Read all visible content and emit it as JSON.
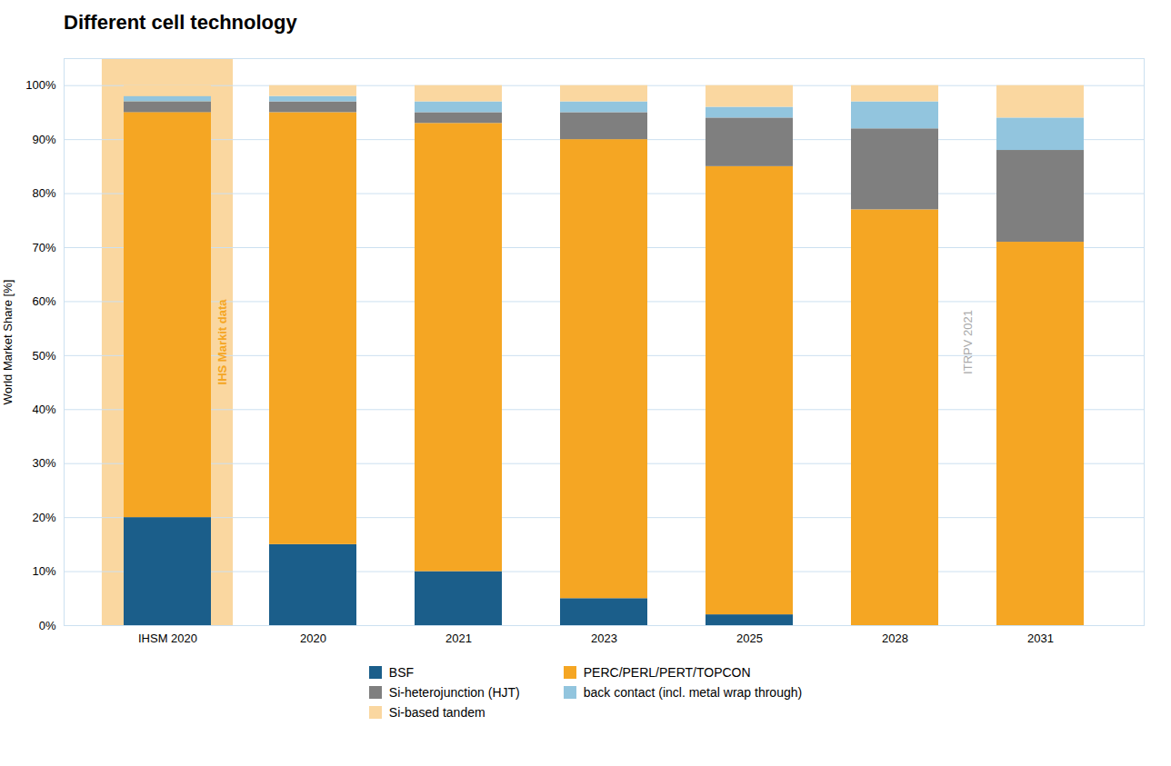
{
  "chart_data": {
    "type": "bar",
    "stacked": true,
    "title": "Different cell technology",
    "ylabel": "World Market Share [%]",
    "categories": [
      "IHSM 2020",
      "2020",
      "2021",
      "2023",
      "2025",
      "2028",
      "2031"
    ],
    "series": [
      {
        "name": "BSF",
        "color": "#1b5e8a",
        "values": [
          20,
          15,
          10,
          5,
          2,
          0,
          0
        ]
      },
      {
        "name": "PERC/PERL/PERT/TOPCON",
        "color": "#f5a623",
        "values": [
          75,
          80,
          83,
          85,
          83,
          77,
          71
        ]
      },
      {
        "name": "Si-heterojunction (HJT)",
        "color": "#7f7f7f",
        "values": [
          2,
          2,
          2,
          5,
          9,
          15,
          17
        ]
      },
      {
        "name": "back contact (incl. metal wrap through)",
        "color": "#92c5de",
        "values": [
          1,
          1,
          2,
          2,
          2,
          5,
          6
        ]
      },
      {
        "name": "Si-based tandem",
        "color": "#fad7a0",
        "values": [
          2,
          2,
          3,
          3,
          4,
          3,
          6
        ]
      }
    ],
    "ylim": [
      0,
      105
    ],
    "yticks": [
      {
        "value": 0,
        "label": "0%"
      },
      {
        "value": 10,
        "label": "10%"
      },
      {
        "value": 20,
        "label": "20%"
      },
      {
        "value": 30,
        "label": "30%"
      },
      {
        "value": 40,
        "label": "40%"
      },
      {
        "value": 50,
        "label": "50%"
      },
      {
        "value": 60,
        "label": "60%"
      },
      {
        "value": 70,
        "label": "70%"
      },
      {
        "value": 80,
        "label": "80%"
      },
      {
        "value": 90,
        "label": "90%"
      },
      {
        "value": 100,
        "label": "100%"
      }
    ],
    "grid": true,
    "legend": "bottom",
    "annotations": [
      {
        "text": "IHS Markit data",
        "x": "IHSM 2020",
        "color": "#f5a623",
        "background": "#fad7a0"
      },
      {
        "text": "ITRPV 2021",
        "x": "2028",
        "color": "#aaaaaa"
      }
    ]
  }
}
